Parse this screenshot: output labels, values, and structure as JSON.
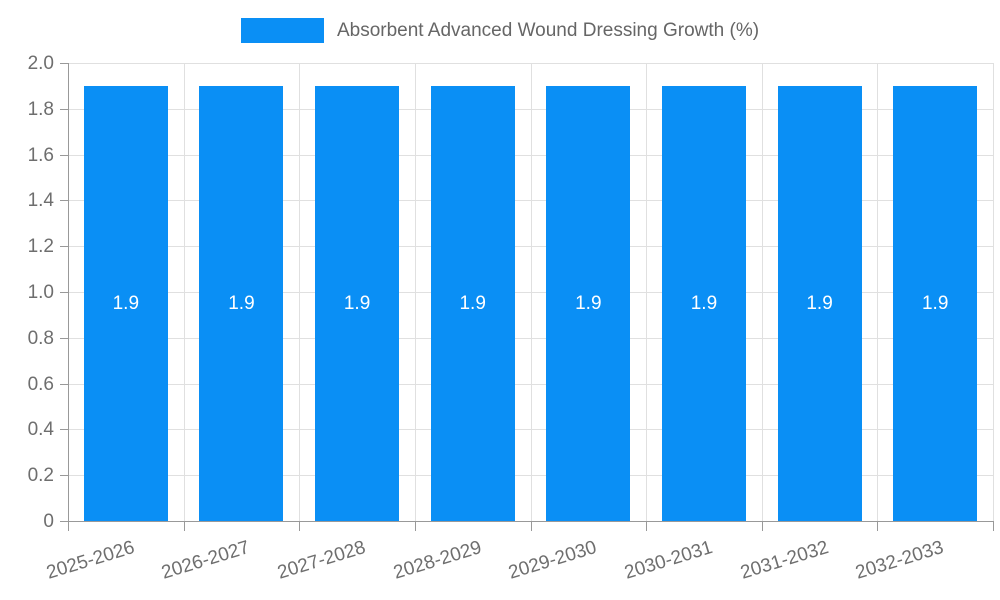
{
  "legend": {
    "label": "Absorbent Advanced Wound Dressing Growth (%)"
  },
  "colors": {
    "bar": "#0a8ff5",
    "grid": "#e0e0e0",
    "axis": "#999999",
    "tick_label": "#6e6e6e",
    "legend_text": "#666666",
    "bar_label": "#ffffff",
    "background": "#ffffff"
  },
  "chart_data": {
    "type": "bar",
    "title": "",
    "xlabel": "",
    "ylabel": "",
    "categories": [
      "2025-2026",
      "2026-2027",
      "2027-2028",
      "2028-2029",
      "2029-2030",
      "2030-2031",
      "2031-2032",
      "2032-2033"
    ],
    "series": [
      {
        "name": "Absorbent Advanced Wound Dressing Growth (%)",
        "values": [
          1.9,
          1.9,
          1.9,
          1.9,
          1.9,
          1.9,
          1.9,
          1.9
        ]
      }
    ],
    "bar_labels": [
      "1.9",
      "1.9",
      "1.9",
      "1.9",
      "1.9",
      "1.9",
      "1.9",
      "1.9"
    ],
    "ylim": [
      0,
      2.0
    ],
    "yticks": [
      "0",
      "0.2",
      "0.4",
      "0.6",
      "0.8",
      "1.0",
      "1.2",
      "1.4",
      "1.6",
      "1.8",
      "2.0"
    ],
    "grid": true,
    "legend_position": "top-center",
    "x_label_rotation_deg": -17
  }
}
